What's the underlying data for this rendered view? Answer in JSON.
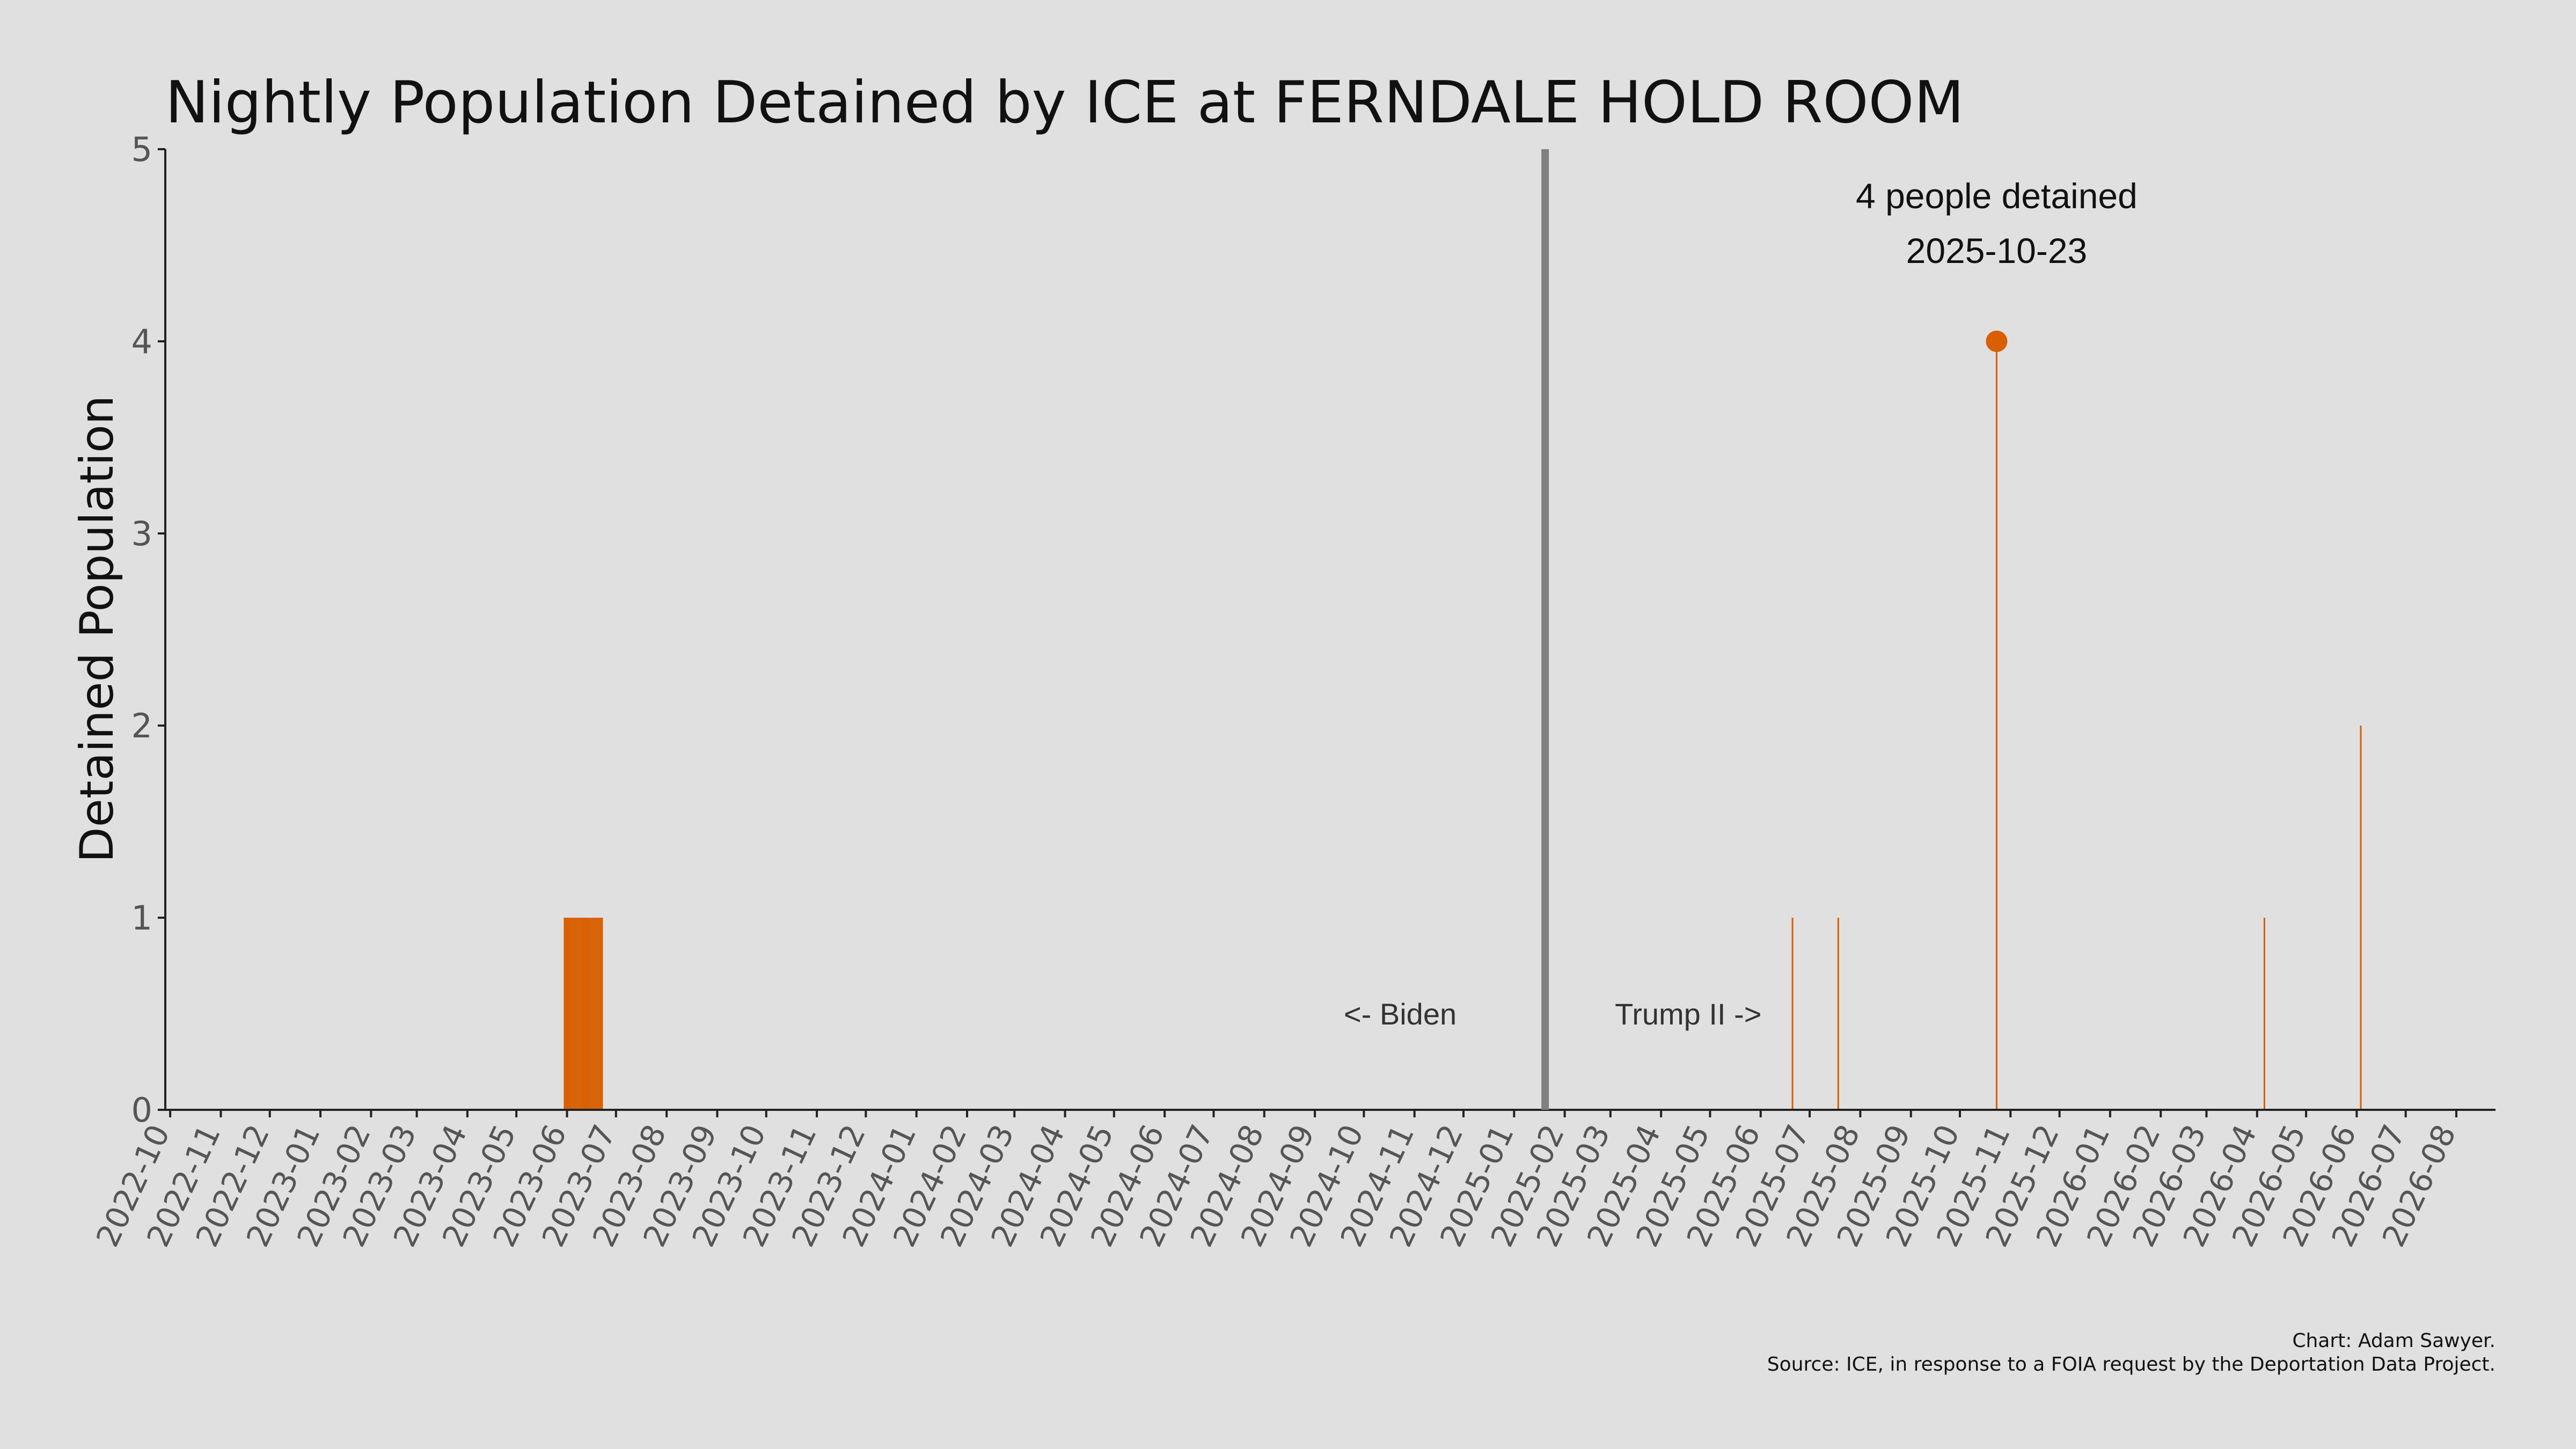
{
  "chart_data": {
    "type": "bar",
    "title": "Nightly Population Detained by ICE at FERNDALE HOLD ROOM",
    "ylabel": "Detained Population",
    "xlabel": "",
    "ylim": [
      0,
      5
    ],
    "yticks": [
      0,
      1,
      2,
      3,
      4,
      5
    ],
    "xlim": [
      "2022-09-28",
      "2026-08-25"
    ],
    "x_tick_labels": [
      "2022-10",
      "2022-11",
      "2022-12",
      "2023-01",
      "2023-02",
      "2023-03",
      "2023-04",
      "2023-05",
      "2023-06",
      "2023-07",
      "2023-08",
      "2023-09",
      "2023-10",
      "2023-11",
      "2023-12",
      "2024-01",
      "2024-02",
      "2024-03",
      "2024-04",
      "2024-05",
      "2024-06",
      "2024-07",
      "2024-08",
      "2024-09",
      "2024-10",
      "2024-11",
      "2024-12",
      "2025-01",
      "2025-02",
      "2025-03",
      "2025-04",
      "2025-05",
      "2025-06",
      "2025-07",
      "2025-08",
      "2025-09",
      "2025-10",
      "2025-11",
      "2025-12",
      "2026-01",
      "2026-02",
      "2026-03",
      "2026-04",
      "2026-05",
      "2026-06",
      "2026-07",
      "2026-08"
    ],
    "grid": false,
    "bar_color": "#d95f02",
    "divider_color": "#808080",
    "series": [
      {
        "points": [
          {
            "date": "2023-05-30",
            "value": 1
          },
          {
            "date": "2023-05-31",
            "value": 1
          },
          {
            "date": "2023-06-01",
            "value": 1
          },
          {
            "date": "2023-06-02",
            "value": 1
          },
          {
            "date": "2023-06-03",
            "value": 1
          },
          {
            "date": "2023-06-04",
            "value": 1
          },
          {
            "date": "2023-06-05",
            "value": 1
          },
          {
            "date": "2023-06-06",
            "value": 1
          },
          {
            "date": "2023-06-07",
            "value": 1
          },
          {
            "date": "2023-06-08",
            "value": 1
          },
          {
            "date": "2023-06-09",
            "value": 1
          },
          {
            "date": "2023-06-10",
            "value": 1
          },
          {
            "date": "2023-06-11",
            "value": 1
          },
          {
            "date": "2023-06-12",
            "value": 1
          },
          {
            "date": "2023-06-13",
            "value": 1
          },
          {
            "date": "2023-06-14",
            "value": 1
          },
          {
            "date": "2023-06-15",
            "value": 1
          },
          {
            "date": "2023-06-16",
            "value": 1
          },
          {
            "date": "2023-06-17",
            "value": 1
          },
          {
            "date": "2023-06-18",
            "value": 1
          },
          {
            "date": "2023-06-19",
            "value": 1
          },
          {
            "date": "2023-06-20",
            "value": 1
          },
          {
            "date": "2023-06-21",
            "value": 1
          },
          {
            "date": "2023-06-22",
            "value": 1
          },
          {
            "date": "2025-06-20",
            "value": 1
          },
          {
            "date": "2025-07-18",
            "value": 1
          },
          {
            "date": "2025-10-23",
            "value": 4
          },
          {
            "date": "2026-04-05",
            "value": 1
          },
          {
            "date": "2026-06-03",
            "value": 2
          }
        ]
      }
    ],
    "divider_date": "2025-01-20",
    "era_labels": {
      "left": "<- Biden",
      "right": "Trump II ->"
    },
    "highlight": {
      "date": "2025-10-23",
      "value": 4,
      "line1": "4 people detained",
      "line2": "2025-10-23"
    }
  },
  "credits": {
    "line1": "Chart: Adam Sawyer.",
    "line2": "Source: ICE, in response to a FOIA request by the Deportation Data Project."
  }
}
